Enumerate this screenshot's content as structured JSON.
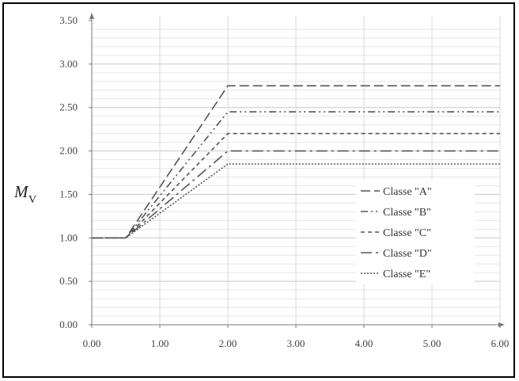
{
  "chart_data": {
    "type": "line",
    "title": "",
    "xlabel": "",
    "ylabel": {
      "main": "M",
      "sub": "V"
    },
    "xlim": [
      0,
      6
    ],
    "ylim": [
      0,
      3.5
    ],
    "x_ticks": [
      "0.00",
      "1.00",
      "2.00",
      "3.00",
      "4.00",
      "5.00",
      "6.00"
    ],
    "x_tick_values": [
      0,
      1,
      2,
      3,
      4,
      5,
      6
    ],
    "y_ticks": [
      "0.00",
      "0.50",
      "1.00",
      "1.50",
      "2.00",
      "2.50",
      "3.00",
      "3.50"
    ],
    "y_tick_values": [
      0,
      0.5,
      1,
      1.5,
      2,
      2.5,
      3,
      3.5
    ],
    "grid": true,
    "legend_position": "lower-right",
    "series": [
      {
        "name": "Classe \"A\"",
        "x": [
          0,
          0.5,
          2,
          6
        ],
        "y": [
          1,
          1,
          2.75,
          2.75
        ],
        "dash": "12,5",
        "color": "#555555"
      },
      {
        "name": "Classe \"B\"",
        "x": [
          0,
          0.5,
          2,
          6
        ],
        "y": [
          1,
          1,
          2.45,
          2.45
        ],
        "dash": "9,4,2,4,2,4",
        "color": "#555555"
      },
      {
        "name": "Classe \"C\"",
        "x": [
          0,
          0.5,
          2,
          6
        ],
        "y": [
          1,
          1,
          2.2,
          2.2
        ],
        "dash": "5,4",
        "color": "#555555"
      },
      {
        "name": "Classe \"D\"",
        "x": [
          0,
          0.5,
          2,
          6
        ],
        "y": [
          1,
          1,
          2.0,
          2.0
        ],
        "dash": "14,5,3,5",
        "color": "#555555"
      },
      {
        "name": "Classe \"E\"",
        "x": [
          0,
          0.5,
          2,
          6
        ],
        "y": [
          1,
          1,
          1.85,
          1.85
        ],
        "dash": "2,2",
        "color": "#555555"
      }
    ]
  }
}
